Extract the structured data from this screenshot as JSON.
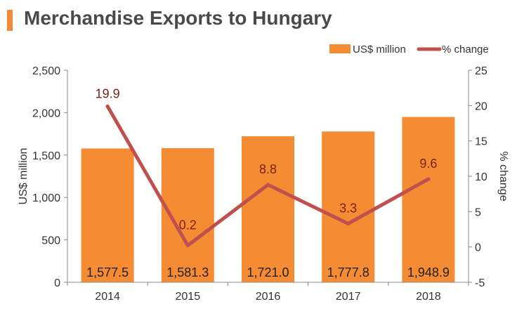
{
  "header": {
    "title": "Merchandise Exports to Hungary"
  },
  "colors": {
    "bar": "#f58b33",
    "line": "#c0504d",
    "title_bar": "#f0893a"
  },
  "chart_data": {
    "type": "bar",
    "categories": [
      "2014",
      "2015",
      "2016",
      "2017",
      "2018"
    ],
    "series": [
      {
        "name": "US$ million",
        "type": "bar",
        "axis": "left",
        "values": [
          1577.5,
          1581.3,
          1721.0,
          1777.8,
          1948.9
        ],
        "labels": [
          "1,577.5",
          "1,581.3",
          "1,721.0",
          "1,777.8",
          "1,948.9"
        ]
      },
      {
        "name": "% change",
        "type": "line",
        "axis": "right",
        "values": [
          19.9,
          0.2,
          8.8,
          3.3,
          9.6
        ],
        "labels": [
          "19.9",
          "0.2",
          "8.8",
          "3.3",
          "9.6"
        ]
      }
    ],
    "ylabel": "US$ million",
    "y2label": "% change",
    "ylim": [
      0,
      2500
    ],
    "y2lim": [
      -5,
      25
    ],
    "yticks": [
      "0",
      "500",
      "1,000",
      "1,500",
      "2,000",
      "2,500"
    ],
    "y2ticks": [
      "-5",
      "0",
      "5",
      "10",
      "15",
      "20",
      "25"
    ],
    "legend": "top-right",
    "grid": false
  }
}
